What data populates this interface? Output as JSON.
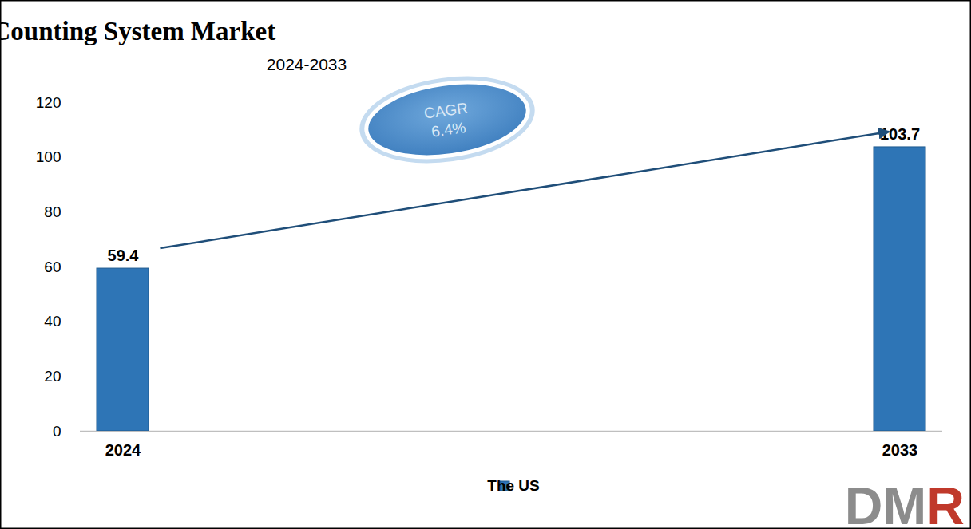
{
  "chart_data": {
    "type": "bar",
    "title": "The US Sponge Counting System Market",
    "subtitle": "2024-2033",
    "categories": [
      "2024",
      "2033"
    ],
    "series": [
      {
        "name": "The US",
        "color": "#2e75b6",
        "values": [
          59.4,
          103.7
        ]
      }
    ],
    "ylim": [
      0,
      120
    ],
    "yticks": [
      0,
      20,
      40,
      60,
      80,
      100,
      120
    ],
    "grid": false,
    "data_labels": true,
    "legend": "bottom",
    "annotations": [
      "CAGR",
      "6.4%"
    ],
    "logo": "DMR"
  }
}
